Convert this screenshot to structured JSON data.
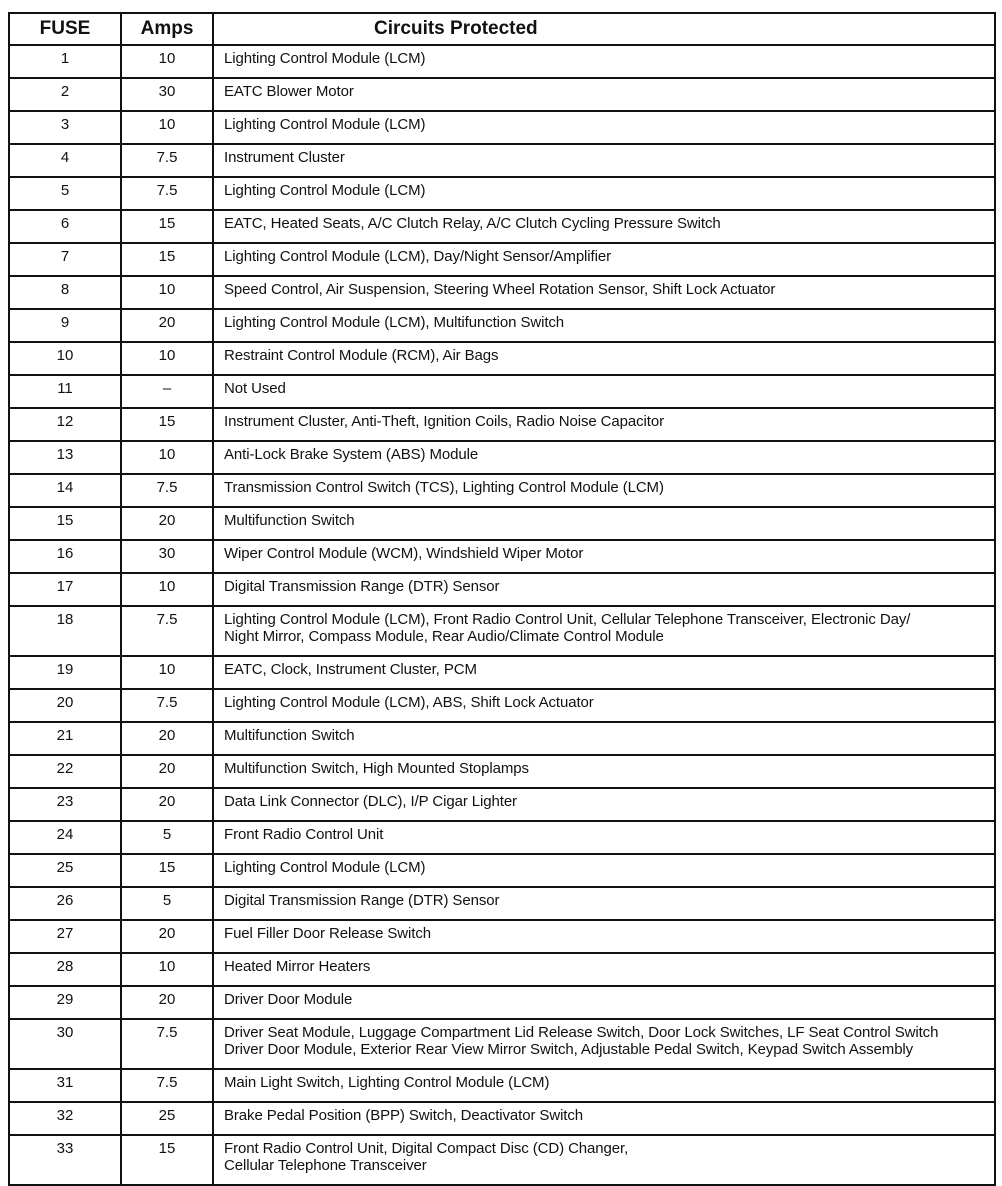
{
  "headers": {
    "fuse": "FUSE",
    "amps": "Amps",
    "circuits": "Circuits Protected"
  },
  "rows": [
    {
      "fuse": "1",
      "amps": "10",
      "circuits": "Lighting Control Module (LCM)"
    },
    {
      "fuse": "2",
      "amps": "30",
      "circuits": "EATC Blower Motor"
    },
    {
      "fuse": "3",
      "amps": "10",
      "circuits": "Lighting Control Module (LCM)"
    },
    {
      "fuse": "4",
      "amps": "7.5",
      "circuits": "Instrument Cluster"
    },
    {
      "fuse": "5",
      "amps": "7.5",
      "circuits": "Lighting Control Module (LCM)"
    },
    {
      "fuse": "6",
      "amps": "15",
      "circuits": "EATC, Heated Seats, A/C Clutch Relay, A/C Clutch Cycling Pressure Switch"
    },
    {
      "fuse": "7",
      "amps": "15",
      "circuits": "Lighting Control Module (LCM), Day/Night Sensor/Amplifier"
    },
    {
      "fuse": "8",
      "amps": "10",
      "circuits": "Speed Control, Air Suspension, Steering Wheel Rotation Sensor, Shift Lock Actuator"
    },
    {
      "fuse": "9",
      "amps": "20",
      "circuits": "Lighting Control Module (LCM), Multifunction Switch"
    },
    {
      "fuse": "10",
      "amps": "10",
      "circuits": "Restraint Control Module (RCM), Air Bags"
    },
    {
      "fuse": "11",
      "amps": "–",
      "circuits": "Not Used"
    },
    {
      "fuse": "12",
      "amps": "15",
      "circuits": "Instrument Cluster, Anti-Theft, Ignition Coils, Radio Noise Capacitor"
    },
    {
      "fuse": "13",
      "amps": "10",
      "circuits": "Anti-Lock Brake System (ABS) Module"
    },
    {
      "fuse": "14",
      "amps": "7.5",
      "circuits": "Transmission Control Switch (TCS), Lighting Control Module (LCM)"
    },
    {
      "fuse": "15",
      "amps": "20",
      "circuits": "Multifunction Switch"
    },
    {
      "fuse": "16",
      "amps": "30",
      "circuits": "Wiper Control Module (WCM), Windshield Wiper Motor"
    },
    {
      "fuse": "17",
      "amps": "10",
      "circuits": "Digital Transmission Range (DTR) Sensor"
    },
    {
      "fuse": "18",
      "amps": "7.5",
      "circuits": "Lighting Control Module (LCM), Front Radio Control Unit,  Cellular  Telephone Transceiver, Electronic Day/\nNight Mirror, Compass Module, Rear Audio/Climate Control Module"
    },
    {
      "fuse": "19",
      "amps": "10",
      "circuits": "EATC, Clock, Instrument Cluster, PCM"
    },
    {
      "fuse": "20",
      "amps": "7.5",
      "circuits": "Lighting Control Module (LCM), ABS, Shift Lock Actuator"
    },
    {
      "fuse": "21",
      "amps": "20",
      "circuits": "Multifunction Switch"
    },
    {
      "fuse": "22",
      "amps": "20",
      "circuits": "Multifunction Switch, High Mounted Stoplamps"
    },
    {
      "fuse": "23",
      "amps": "20",
      "circuits": "Data Link Connector (DLC), I/P Cigar Lighter"
    },
    {
      "fuse": "24",
      "amps": "5",
      "circuits": "Front Radio Control Unit"
    },
    {
      "fuse": "25",
      "amps": "15",
      "circuits": "Lighting Control Module (LCM)"
    },
    {
      "fuse": "26",
      "amps": "5",
      "circuits": "Digital Transmission Range (DTR) Sensor"
    },
    {
      "fuse": "27",
      "amps": "20",
      "circuits": "Fuel Filler Door Release Switch"
    },
    {
      "fuse": "28",
      "amps": "10",
      "circuits": "Heated Mirror Heaters"
    },
    {
      "fuse": "29",
      "amps": "20",
      "circuits": "Driver Door Module"
    },
    {
      "fuse": "30",
      "amps": "7.5",
      "circuits": "Driver Seat Module, Luggage Compartment Lid Release Switch, Door Lock Switches, LF Seat Control Switch\nDriver Door Module, Exterior Rear View Mirror Switch, Adjustable Pedal Switch, Keypad Switch Assembly"
    },
    {
      "fuse": "31",
      "amps": "7.5",
      "circuits": "Main Light Switch, Lighting Control Module (LCM)"
    },
    {
      "fuse": "32",
      "amps": "25",
      "circuits": "Brake Pedal Position (BPP) Switch, Deactivator Switch"
    },
    {
      "fuse": "33",
      "amps": "15",
      "circuits": "Front Radio Control Unit, Digital Compact Disc (CD) Changer,\nCellular Telephone Transceiver"
    }
  ]
}
